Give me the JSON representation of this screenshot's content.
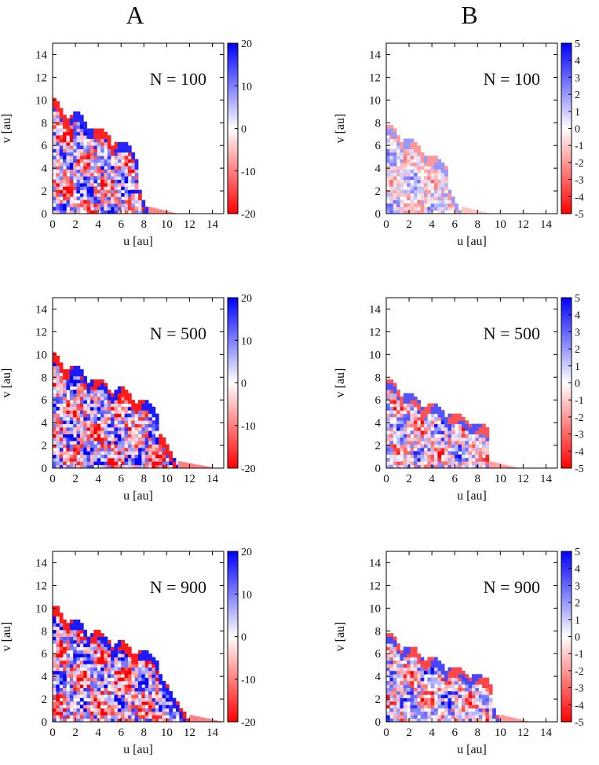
{
  "figure": {
    "column_headers": [
      "A",
      "B"
    ]
  },
  "chart_data": [
    {
      "type": "heatmap",
      "column": "A",
      "annotation": "N = 100",
      "N": 100,
      "xlabel": "u [au]",
      "ylabel": "v [au]",
      "xlim": [
        0,
        15
      ],
      "ylim": [
        0,
        15
      ],
      "xticks": [
        0,
        2,
        4,
        6,
        8,
        10,
        12,
        14
      ],
      "yticks": [
        0,
        2,
        4,
        6,
        8,
        10,
        12,
        14
      ],
      "colorbar": {
        "min": -20,
        "max": 20,
        "ticks": [
          20,
          10,
          0,
          -10,
          -20
        ],
        "colors": [
          "#ff0000",
          "#ffffff",
          "#0000ff"
        ]
      },
      "envelope": {
        "v0": 10.0,
        "hump_period": 2,
        "bumps": [
          [
            0,
            10.0
          ],
          [
            2,
            8.8
          ],
          [
            4,
            7.5
          ],
          [
            6,
            6.2
          ]
        ],
        "extent_u": 8.4,
        "tail_u": 10.8
      },
      "noise_amplitude": 0.95,
      "grid": false
    },
    {
      "type": "heatmap",
      "column": "B",
      "annotation": "N = 100",
      "N": 100,
      "xlabel": "u [au]",
      "ylabel": "v [au]",
      "xlim": [
        0,
        15
      ],
      "ylim": [
        0,
        15
      ],
      "xticks": [
        0,
        2,
        4,
        6,
        8,
        10,
        12,
        14
      ],
      "yticks": [
        0,
        2,
        4,
        6,
        8,
        10,
        12,
        14
      ],
      "colorbar": {
        "min": -5,
        "max": 5,
        "ticks": [
          5,
          4,
          3,
          2,
          1,
          0,
          -1,
          -2,
          -3,
          -4,
          -5
        ],
        "colors": [
          "#ff0000",
          "#ffffff",
          "#0000ff"
        ]
      },
      "envelope": {
        "v0": 7.8,
        "hump_period": 2,
        "bumps": [
          [
            0,
            7.8
          ],
          [
            2,
            6.5
          ],
          [
            4,
            5.0
          ]
        ],
        "extent_u": 6.6,
        "tail_u": 9.0
      },
      "noise_amplitude": 0.45,
      "grid": false
    },
    {
      "type": "heatmap",
      "column": "A",
      "annotation": "N = 500",
      "N": 500,
      "xlabel": "u [au]",
      "ylabel": "v [au]",
      "xlim": [
        0,
        15
      ],
      "ylim": [
        0,
        15
      ],
      "xticks": [
        0,
        2,
        4,
        6,
        8,
        10,
        12,
        14
      ],
      "yticks": [
        0,
        2,
        4,
        6,
        8,
        10,
        12,
        14
      ],
      "colorbar": {
        "min": -20,
        "max": 20,
        "ticks": [
          20,
          10,
          0,
          -10,
          -20
        ],
        "colors": [
          "#ff0000",
          "#ffffff",
          "#0000ff"
        ]
      },
      "envelope": {
        "v0": 10.0,
        "hump_period": 2,
        "bumps": [
          [
            0,
            10.0
          ],
          [
            2,
            8.9
          ],
          [
            4,
            7.8
          ],
          [
            6,
            7.0
          ],
          [
            8,
            5.8
          ]
        ],
        "extent_u": 11.0,
        "tail_u": 14.2
      },
      "noise_amplitude": 1.0,
      "grid": false
    },
    {
      "type": "heatmap",
      "column": "B",
      "annotation": "N = 500",
      "N": 500,
      "xlabel": "u [au]",
      "ylabel": "v [au]",
      "xlim": [
        0,
        15
      ],
      "ylim": [
        0,
        15
      ],
      "xticks": [
        0,
        2,
        4,
        6,
        8,
        10,
        12,
        14
      ],
      "yticks": [
        0,
        2,
        4,
        6,
        8,
        10,
        12,
        14
      ],
      "colorbar": {
        "min": -5,
        "max": 5,
        "ticks": [
          5,
          4,
          3,
          2,
          1,
          0,
          -1,
          -2,
          -3,
          -4,
          -5
        ],
        "colors": [
          "#ff0000",
          "#ffffff",
          "#0000ff"
        ]
      },
      "envelope": {
        "v0": 7.8,
        "hump_period": 2,
        "bumps": [
          [
            0,
            7.8
          ],
          [
            2,
            6.4
          ],
          [
            4,
            5.5
          ],
          [
            6,
            4.8
          ],
          [
            8,
            3.9
          ]
        ],
        "extent_u": 9.0,
        "tail_u": 11.5
      },
      "noise_amplitude": 0.75,
      "grid": false
    },
    {
      "type": "heatmap",
      "column": "A",
      "annotation": "N = 900",
      "N": 900,
      "xlabel": "u [au]",
      "ylabel": "v [au]",
      "xlim": [
        0,
        15
      ],
      "ylim": [
        0,
        15
      ],
      "xticks": [
        0,
        2,
        4,
        6,
        8,
        10,
        12,
        14
      ],
      "yticks": [
        0,
        2,
        4,
        6,
        8,
        10,
        12,
        14
      ],
      "colorbar": {
        "min": -20,
        "max": 20,
        "ticks": [
          20,
          10,
          0,
          -10,
          -20
        ],
        "colors": [
          "#ff0000",
          "#ffffff",
          "#0000ff"
        ]
      },
      "envelope": {
        "v0": 10.2,
        "hump_period": 2,
        "bumps": [
          [
            0,
            10.2
          ],
          [
            2,
            8.9
          ],
          [
            4,
            7.9
          ],
          [
            6,
            7.0
          ],
          [
            8,
            6.2
          ]
        ],
        "extent_u": 12.0,
        "tail_u": 14.8
      },
      "noise_amplitude": 1.0,
      "grid": false
    },
    {
      "type": "heatmap",
      "column": "B",
      "annotation": "N = 900",
      "N": 900,
      "xlabel": "u [au]",
      "ylabel": "v [au]",
      "xlim": [
        0,
        15
      ],
      "ylim": [
        0,
        15
      ],
      "xticks": [
        0,
        2,
        4,
        6,
        8,
        10,
        12,
        14
      ],
      "yticks": [
        0,
        2,
        4,
        6,
        8,
        10,
        12,
        14
      ],
      "colorbar": {
        "min": -5,
        "max": 5,
        "ticks": [
          5,
          4,
          3,
          2,
          1,
          0,
          -1,
          -2,
          -3,
          -4,
          -5
        ],
        "colors": [
          "#ff0000",
          "#ffffff",
          "#0000ff"
        ]
      },
      "envelope": {
        "v0": 7.8,
        "hump_period": 2,
        "bumps": [
          [
            0,
            7.8
          ],
          [
            2,
            6.6
          ],
          [
            4,
            5.5
          ],
          [
            6,
            4.8
          ],
          [
            8,
            4.0
          ]
        ],
        "extent_u": 10.0,
        "tail_u": 12.5
      },
      "noise_amplitude": 0.8,
      "grid": false
    }
  ]
}
